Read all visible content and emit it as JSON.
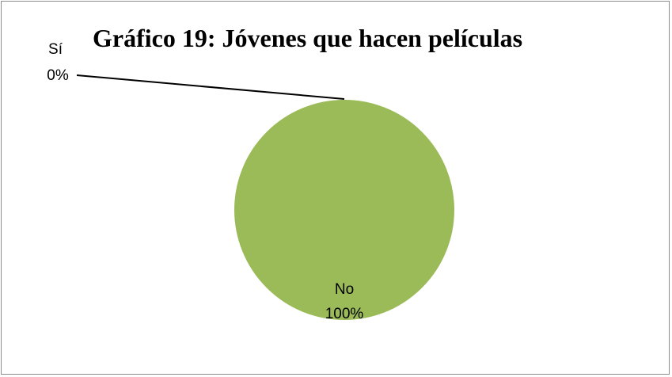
{
  "chart_data": {
    "type": "pie",
    "title": "Gráfico 19: Jóvenes que hacen películas",
    "slices": [
      {
        "label": "Sí",
        "value": 0,
        "percent_label": "0%",
        "color": "#ffffff"
      },
      {
        "label": "No",
        "value": 100,
        "percent_label": "100%",
        "color": "#9bbb59"
      }
    ],
    "legend": "none",
    "data_labels": "category and percentage"
  }
}
